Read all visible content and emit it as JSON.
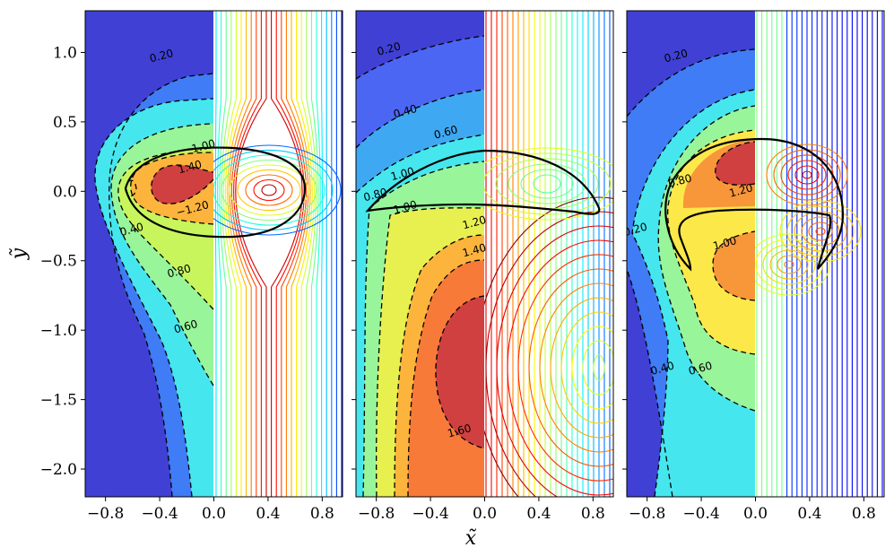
{
  "chart_data": {
    "type": "contour",
    "xlabel": "x̃",
    "ylabel": "ỹ",
    "xlim": [
      -0.95,
      0.95
    ],
    "ylim": [
      -2.2,
      1.3
    ],
    "xticks": [
      "−0.8",
      "−0.4",
      "0.0",
      "0.4",
      "0.8"
    ],
    "yticks": [
      "1.0",
      "0.5",
      "0.0",
      "−0.5",
      "−1.0",
      "−1.5",
      "−2.0"
    ],
    "xtick_values": [
      -0.8,
      -0.4,
      0.0,
      0.4,
      0.8
    ],
    "ytick_values": [
      1.0,
      0.5,
      0.0,
      -0.5,
      -1.0,
      -1.5,
      -2.0
    ],
    "colormap": "jet",
    "left_half": "filled contours with dashed contour lines",
    "right_half": "streamlines with arrows",
    "solid_outline": "interface (solid black)",
    "panels": [
      {
        "id": "left",
        "contour_labels": [
          {
            "text": "0.20",
            "x": -0.38,
            "y": 0.95
          },
          {
            "text": "1.00",
            "x": -0.07,
            "y": 0.3
          },
          {
            "text": "1.40",
            "x": -0.17,
            "y": 0.15
          },
          {
            "text": "−1.20",
            "x": -0.15,
            "y": -0.15
          },
          {
            "text": "0.40",
            "x": -0.6,
            "y": -0.3
          },
          {
            "text": "0.80",
            "x": -0.25,
            "y": -0.6
          },
          {
            "text": "0.60",
            "x": -0.2,
            "y": -1.0
          }
        ]
      },
      {
        "id": "middle",
        "contour_labels": [
          {
            "text": "0.20",
            "x": -0.7,
            "y": 1.0
          },
          {
            "text": "0.40",
            "x": -0.58,
            "y": 0.55
          },
          {
            "text": "0.60",
            "x": -0.28,
            "y": 0.4
          },
          {
            "text": "0.80",
            "x": -0.8,
            "y": -0.05
          },
          {
            "text": "1.00",
            "x": -0.6,
            "y": 0.1
          },
          {
            "text": "1.00",
            "x": -0.58,
            "y": -0.14
          },
          {
            "text": "1.20",
            "x": -0.07,
            "y": -0.25
          },
          {
            "text": "1.40",
            "x": -0.07,
            "y": -0.45
          },
          {
            "text": "1.60",
            "x": -0.18,
            "y": -1.75
          }
        ]
      },
      {
        "id": "right",
        "contour_labels": [
          {
            "text": "0.20",
            "x": -0.58,
            "y": 0.95
          },
          {
            "text": "0.80",
            "x": -0.55,
            "y": 0.05
          },
          {
            "text": "1.20",
            "x": -0.1,
            "y": -0.02
          },
          {
            "text": "0.20",
            "x": -0.88,
            "y": -0.3
          },
          {
            "text": "1.00",
            "x": -0.22,
            "y": -0.4
          },
          {
            "text": "0.40",
            "x": -0.68,
            "y": -1.3
          },
          {
            "text": "0.60",
            "x": -0.4,
            "y": -1.3
          }
        ]
      }
    ]
  }
}
